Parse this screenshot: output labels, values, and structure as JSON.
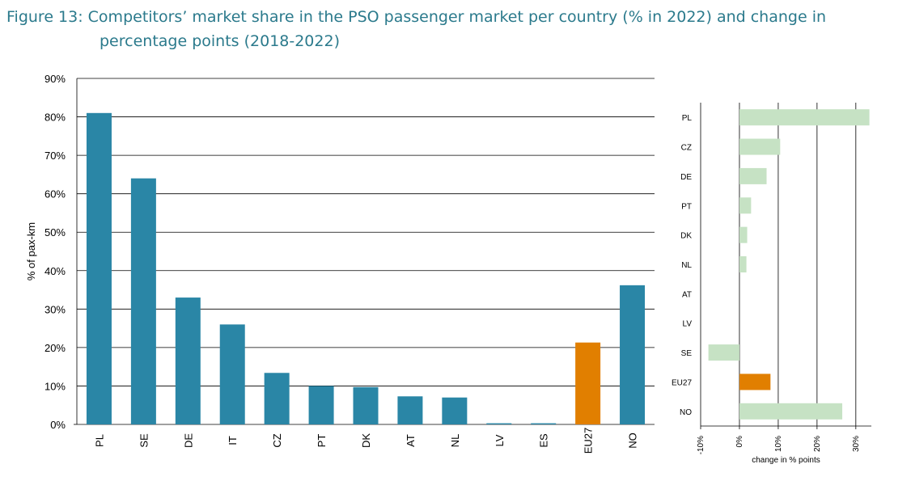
{
  "figure": {
    "caption_line1": "Figure 13: Competitors’ market share in the PSO passenger market per country (% in 2022) and change in",
    "caption_line2": "percentage points (2018-2022)"
  },
  "colors": {
    "main_bar": "#2a86a6",
    "highlight": "#e17f00",
    "side_bar": "#c6e2c4",
    "grid": "#000000"
  },
  "chart_data": [
    {
      "type": "bar",
      "title": "",
      "xlabel": "",
      "ylabel": "% of pax-km",
      "ylim": [
        0,
        90
      ],
      "yticks": [
        0,
        10,
        20,
        30,
        40,
        50,
        60,
        70,
        80,
        90
      ],
      "ytick_format": "%",
      "grid": true,
      "highlight_category": "EU27",
      "categories": [
        "PL",
        "SE",
        "DE",
        "IT",
        "CZ",
        "PT",
        "DK",
        "AT",
        "NL",
        "LV",
        "ES",
        "EU27",
        "NO"
      ],
      "values": [
        81,
        64,
        33,
        26,
        13.4,
        10,
        9.7,
        7.3,
        7,
        0.3,
        0.3,
        21.3,
        36.2
      ]
    },
    {
      "type": "bar",
      "orientation": "horizontal",
      "title": "",
      "xlabel": "change in % points",
      "ylabel": "",
      "xlim": [
        -10,
        34
      ],
      "xticks": [
        -10,
        0,
        10,
        20,
        30
      ],
      "xtick_format": "%",
      "grid": true,
      "highlight_category": "EU27",
      "categories": [
        "PL",
        "CZ",
        "DE",
        "PT",
        "DK",
        "NL",
        "AT",
        "LV",
        "SE",
        "EU27",
        "NO"
      ],
      "values": [
        33.5,
        10.5,
        7,
        3,
        2,
        1.8,
        0,
        0,
        -8,
        8,
        26.5
      ]
    }
  ]
}
